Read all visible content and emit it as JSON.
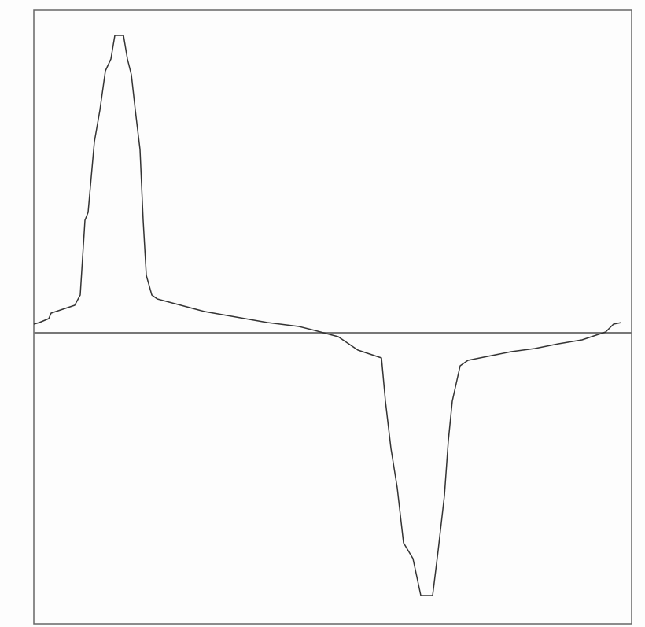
{
  "chart_data": {
    "type": "line",
    "x": [
      0,
      7,
      19,
      22,
      37,
      52,
      59,
      65,
      69,
      77,
      84,
      91,
      98,
      103,
      114,
      119,
      124,
      129,
      135,
      139,
      143,
      150,
      157,
      187,
      217,
      257,
      297,
      337,
      357,
      387,
      412,
      442,
      447,
      454,
      462,
      470,
      482,
      492,
      507,
      514,
      522,
      527,
      532,
      542,
      552,
      577,
      607,
      637,
      667,
      697,
      727,
      737,
      747
    ],
    "series": [
      {
        "color": "#333333",
        "values": [
          11,
          13,
          18,
          25,
          30,
          35,
          48,
          143,
          153,
          243,
          283,
          333,
          348,
          378,
          378,
          348,
          328,
          283,
          233,
          143,
          73,
          48,
          43,
          35,
          27,
          20,
          13,
          8,
          3,
          -5,
          -22,
          -32,
          -87,
          -147,
          -197,
          -267,
          -287,
          -334,
          -334,
          -277,
          -207,
          -137,
          -87,
          -42,
          -35,
          -30,
          -24,
          -20,
          -14,
          -9,
          1,
          11,
          13
        ]
      }
    ],
    "xlim": [
      0,
      760
    ],
    "ylim": [
      -370,
      410
    ]
  }
}
